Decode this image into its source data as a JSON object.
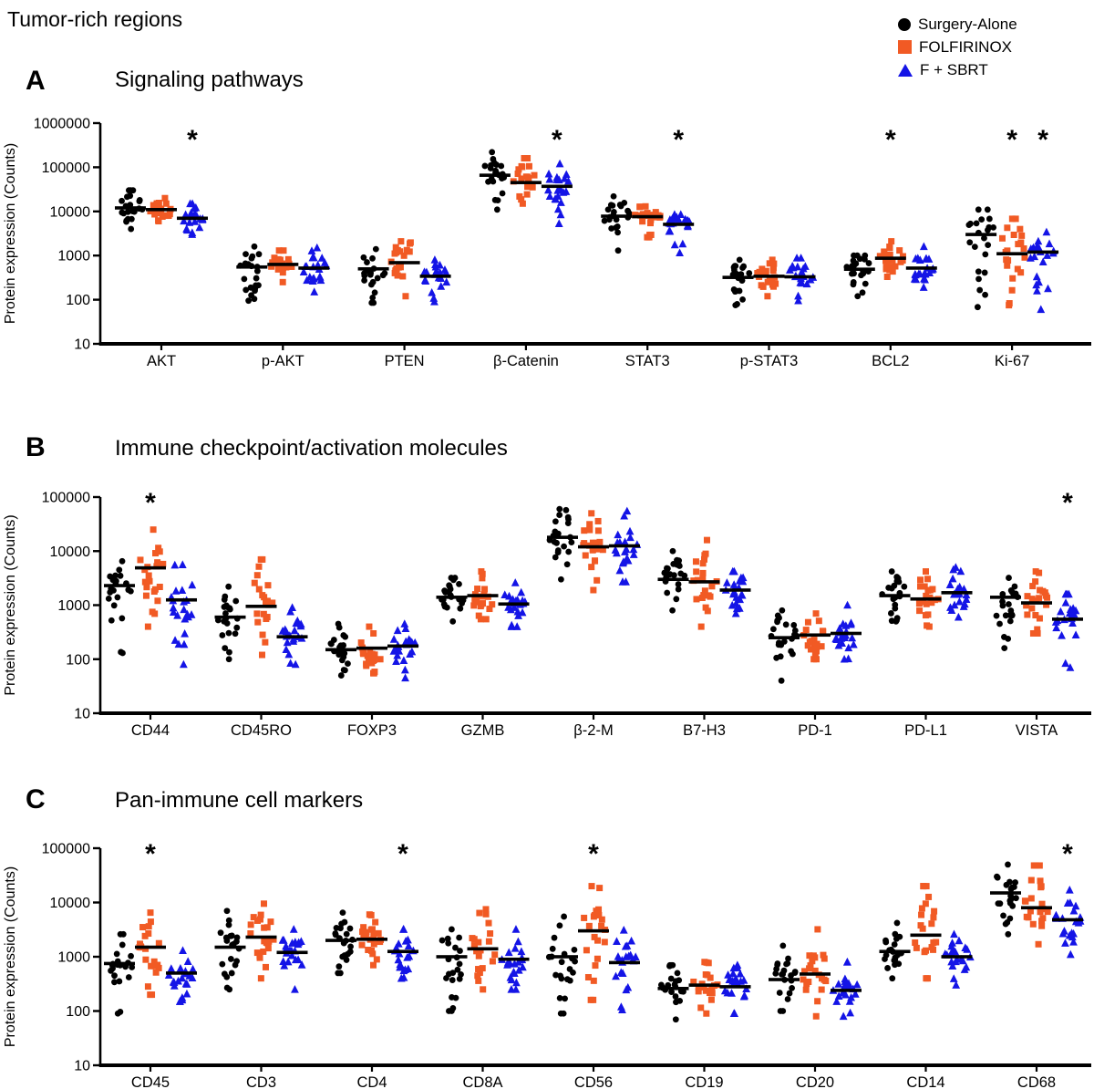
{
  "figure_title": "Tumor-rich regions",
  "y_axis_label": "Protein expression (Counts)",
  "colors": {
    "surgery": "#000000",
    "folfirinox": "#F15A24",
    "fsbrt": "#1414E6"
  },
  "legend": {
    "items": [
      {
        "label": "Surgery-Alone",
        "marker": "circle-icon",
        "color": "#000000"
      },
      {
        "label": "FOLFIRINOX",
        "marker": "square-icon",
        "color": "#F15A24"
      },
      {
        "label": "F + SBRT",
        "marker": "triangle-icon",
        "color": "#1414E6"
      }
    ]
  },
  "chart_data": [
    {
      "panel": "A",
      "type": "scatter",
      "subtype": "jittered-dot-plot-log-scale",
      "title": "Signaling pathways",
      "ylabel": "Protein expression (Counts)",
      "ylog": true,
      "ylim": [
        10,
        1000000
      ],
      "yticks": [
        10,
        100,
        1000,
        10000,
        100000,
        1000000
      ],
      "categories": [
        "AKT",
        "p-AKT",
        "PTEN",
        "β-Catenin",
        "STAT3",
        "p-STAT3",
        "BCL2",
        "Ki-67"
      ],
      "series": [
        {
          "name": "Surgery-Alone",
          "marker": "circle",
          "color": "#000000",
          "n": 22,
          "stats_min_median_max": [
            [
              4000,
              12000,
              30000
            ],
            [
              95,
              550,
              1600
            ],
            [
              85,
              500,
              1400
            ],
            [
              11000,
              66000,
              220000
            ],
            [
              1300,
              7800,
              22000
            ],
            [
              75,
              320,
              800
            ],
            [
              120,
              490,
              1000
            ],
            [
              68,
              3000,
              11000
            ]
          ]
        },
        {
          "name": "FOLFIRINOX",
          "marker": "square",
          "color": "#F15A24",
          "n": 22,
          "stats_min_median_max": [
            [
              6000,
              11000,
              20000
            ],
            [
              250,
              630,
              1300
            ],
            [
              120,
              690,
              2100
            ],
            [
              15000,
              45000,
              160000
            ],
            [
              2600,
              7600,
              13000
            ],
            [
              120,
              340,
              800
            ],
            [
              330,
              870,
              2100
            ],
            [
              75,
              1100,
              6800
            ]
          ]
        },
        {
          "name": "F + SBRT",
          "marker": "triangle",
          "color": "#1414E6",
          "n": 22,
          "stats_min_median_max": [
            [
              3000,
              7000,
              15000
            ],
            [
              150,
              520,
              1500
            ],
            [
              90,
              340,
              800
            ],
            [
              5300,
              37000,
              120000
            ],
            [
              1150,
              5100,
              8500
            ],
            [
              95,
              330,
              880
            ],
            [
              190,
              520,
              1600
            ],
            [
              60,
              1200,
              3400
            ]
          ]
        }
      ],
      "significance": [
        {
          "category": "AKT",
          "series": 2,
          "label": "*"
        },
        {
          "category": "β-Catenin",
          "series": 2,
          "label": "*"
        },
        {
          "category": "STAT3",
          "series": 2,
          "label": "*"
        },
        {
          "category": "BCL2",
          "series": 1,
          "label": "*"
        },
        {
          "category": "Ki-67",
          "series": 1,
          "label": "*"
        },
        {
          "category": "Ki-67",
          "series": 2,
          "label": "*"
        }
      ]
    },
    {
      "panel": "B",
      "type": "scatter",
      "subtype": "jittered-dot-plot-log-scale",
      "title": "Immune checkpoint/activation molecules",
      "ylabel": "Protein expression (Counts)",
      "ylog": true,
      "ylim": [
        10,
        100000
      ],
      "yticks": [
        10,
        100,
        1000,
        10000,
        100000
      ],
      "categories": [
        "CD44",
        "CD45RO",
        "FOXP3",
        "GZMB",
        "β-2-M",
        "B7-H3",
        "PD-1",
        "PD-L1",
        "VISTA"
      ],
      "series": [
        {
          "name": "Surgery-Alone",
          "marker": "circle",
          "color": "#000000",
          "n": 22,
          "stats_min_median_max": [
            [
              130,
              2300,
              6500
            ],
            [
              100,
              600,
              2200
            ],
            [
              50,
              150,
              450
            ],
            [
              500,
              1400,
              3200
            ],
            [
              3000,
              18000,
              60000
            ],
            [
              800,
              3000,
              10000
            ],
            [
              40,
              250,
              800
            ],
            [
              500,
              1500,
              4200
            ],
            [
              160,
              1400,
              3200
            ]
          ]
        },
        {
          "name": "FOLFIRINOX",
          "marker": "square",
          "color": "#F15A24",
          "n": 22,
          "stats_min_median_max": [
            [
              400,
              4900,
              25000
            ],
            [
              120,
              950,
              7000
            ],
            [
              55,
              160,
              400
            ],
            [
              550,
              1500,
              4200
            ],
            [
              1900,
              12000,
              50000
            ],
            [
              400,
              2700,
              16000
            ],
            [
              100,
              280,
              700
            ],
            [
              400,
              1300,
              4200
            ],
            [
              300,
              1100,
              4200
            ]
          ]
        },
        {
          "name": "F + SBRT",
          "marker": "triangle",
          "color": "#1414E6",
          "n": 22,
          "stats_min_median_max": [
            [
              80,
              1250,
              5600
            ],
            [
              80,
              260,
              900
            ],
            [
              45,
              175,
              450
            ],
            [
              400,
              1050,
              2600
            ],
            [
              2700,
              12500,
              55000
            ],
            [
              700,
              1900,
              4200
            ],
            [
              100,
              300,
              1000
            ],
            [
              600,
              1700,
              5000
            ],
            [
              70,
              550,
              1600
            ]
          ]
        }
      ],
      "significance": [
        {
          "category": "CD44",
          "series": 1,
          "label": "*"
        },
        {
          "category": "VISTA",
          "series": 2,
          "label": "*"
        }
      ]
    },
    {
      "panel": "C",
      "type": "scatter",
      "subtype": "jittered-dot-plot-log-scale",
      "title": "Pan-immune cell markers",
      "ylabel": "Protein expression (Counts)",
      "ylog": true,
      "ylim": [
        10,
        100000
      ],
      "yticks": [
        10,
        100,
        1000,
        10000,
        100000
      ],
      "categories": [
        "CD45",
        "CD3",
        "CD4",
        "CD8A",
        "CD56",
        "CD19",
        "CD20",
        "CD14",
        "CD68"
      ],
      "series": [
        {
          "name": "Surgery-Alone",
          "marker": "circle",
          "color": "#000000",
          "n": 22,
          "stats_min_median_max": [
            [
              90,
              750,
              2600
            ],
            [
              250,
              1500,
              7000
            ],
            [
              500,
              2000,
              6500
            ],
            [
              100,
              1000,
              3200
            ],
            [
              90,
              1000,
              5500
            ],
            [
              70,
              260,
              700
            ],
            [
              100,
              380,
              1600
            ],
            [
              400,
              1250,
              4200
            ],
            [
              2600,
              15000,
              50000
            ]
          ]
        },
        {
          "name": "FOLFIRINOX",
          "marker": "square",
          "color": "#F15A24",
          "n": 22,
          "stats_min_median_max": [
            [
              200,
              1500,
              6500
            ],
            [
              400,
              2300,
              9500
            ],
            [
              700,
              2100,
              6000
            ],
            [
              250,
              1400,
              7500
            ],
            [
              160,
              3000,
              20000
            ],
            [
              90,
              300,
              800
            ],
            [
              80,
              480,
              3200
            ],
            [
              400,
              2500,
              20000
            ],
            [
              1700,
              8000,
              48000
            ]
          ]
        },
        {
          "name": "F + SBRT",
          "marker": "triangle",
          "color": "#1414E6",
          "n": 22,
          "stats_min_median_max": [
            [
              150,
              500,
              1300
            ],
            [
              250,
              1200,
              3200
            ],
            [
              400,
              1250,
              3200
            ],
            [
              250,
              900,
              3200
            ],
            [
              105,
              780,
              3100
            ],
            [
              90,
              280,
              700
            ],
            [
              80,
              240,
              800
            ],
            [
              300,
              1000,
              2600
            ],
            [
              1100,
              4800,
              17000
            ]
          ]
        }
      ],
      "significance": [
        {
          "category": "CD45",
          "series": 1,
          "label": "*"
        },
        {
          "category": "CD4",
          "series": 2,
          "label": "*"
        },
        {
          "category": "CD56",
          "series": 1,
          "label": "*"
        },
        {
          "category": "CD68",
          "series": 2,
          "label": "*"
        }
      ]
    }
  ]
}
